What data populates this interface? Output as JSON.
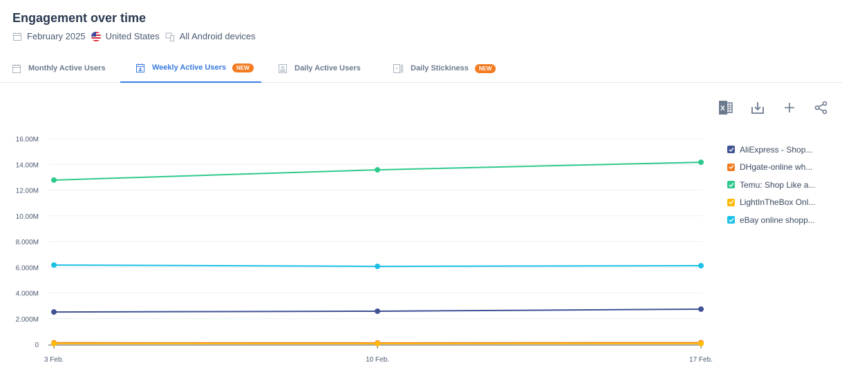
{
  "header": {
    "title": "Engagement over time",
    "date": "February 2025",
    "country": "United States",
    "device": "All Android devices"
  },
  "tabs": [
    {
      "label": "Monthly Active Users",
      "badge": null,
      "active": false
    },
    {
      "label": "Weekly Active Users",
      "badge": "NEW",
      "active": true
    },
    {
      "label": "Daily Active Users",
      "badge": null,
      "active": false
    },
    {
      "label": "Daily Stickiness",
      "badge": "NEW",
      "active": false
    }
  ],
  "toolbar": {
    "icons": [
      "excel-export-icon",
      "download-icon",
      "add-icon",
      "share-icon"
    ]
  },
  "legend": [
    {
      "label": "AliExpress - Shop...",
      "color": "#3f5294"
    },
    {
      "label": "DHgate-online wh...",
      "color": "#f47b20"
    },
    {
      "label": "Temu: Shop Like a...",
      "color": "#2ec98b"
    },
    {
      "label": "LightInTheBox Onl...",
      "color": "#ffba08"
    },
    {
      "label": "eBay online shopp...",
      "color": "#1cc0e6"
    }
  ],
  "chart_data": {
    "type": "line",
    "title": "Engagement over time",
    "subtitle": "Weekly Active Users",
    "xlabel": "",
    "ylabel": "",
    "categories": [
      "3 Feb.",
      "10 Feb.",
      "17 Feb."
    ],
    "y_ticks": [
      "0",
      "2.000M",
      "4.000M",
      "6.000M",
      "8.000M",
      "10.00M",
      "12.00M",
      "14.00M",
      "16.00M"
    ],
    "ylim": [
      0,
      16000000
    ],
    "grid": true,
    "legend_position": "right",
    "series": [
      {
        "name": "AliExpress - Shop...",
        "color": "#3f5294",
        "values": [
          2520000,
          2580000,
          2740000
        ]
      },
      {
        "name": "DHgate-online wh...",
        "color": "#f47b20",
        "values": [
          120000,
          110000,
          130000
        ]
      },
      {
        "name": "Temu: Shop Like a...",
        "color": "#2ec98b",
        "values": [
          12780000,
          13580000,
          14170000
        ]
      },
      {
        "name": "LightInTheBox Onl...",
        "color": "#ffba08",
        "values": [
          60000,
          55000,
          60000
        ]
      },
      {
        "name": "eBay online shopp...",
        "color": "#1cc0e6",
        "values": [
          6170000,
          6070000,
          6120000
        ]
      }
    ]
  }
}
